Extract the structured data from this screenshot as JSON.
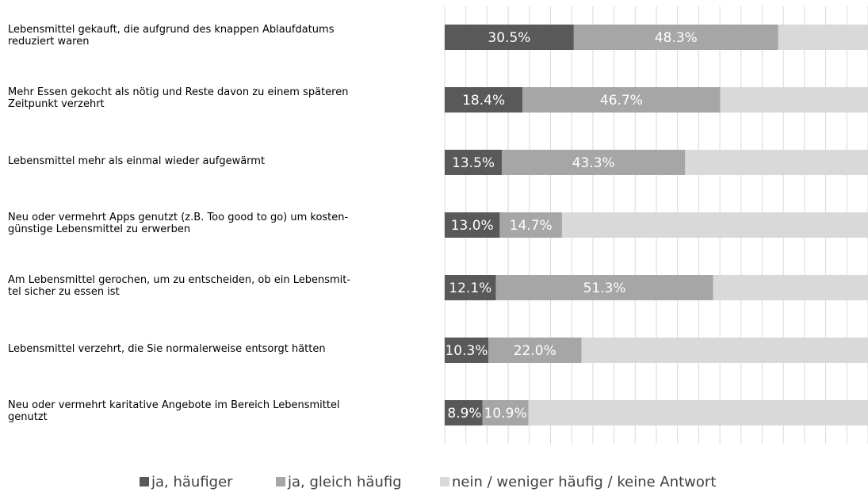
{
  "chart_data": {
    "type": "stacked-barh",
    "categories": [
      "Lebensmittel gekauft, die aufgrund des knappen Ablaufdatums\nreduziert waren",
      "Mehr Essen gekocht als nötig und Reste davon zu einem späteren\nZeitpunkt verzehrt",
      "Lebensmittel mehr als einmal wieder aufgewärmt",
      "Neu oder vermehrt Apps genutzt (z.B. Too good to go) um kosten-\ngünstige Lebensmittel zu erwerben",
      "Am Lebensmittel gerochen, um zu entscheiden, ob ein Lebensmit-\ntel sicher zu essen ist",
      "Lebensmittel verzehrt, die Sie normalerweise entsorgt hätten",
      "Neu oder vermehrt karitative Angebote im Bereich Lebensmittel\ngenutzt"
    ],
    "series": [
      {
        "name": "ja, häufiger",
        "color": "#595959",
        "values": [
          30.5,
          18.4,
          13.5,
          13.0,
          12.1,
          10.3,
          8.9
        ],
        "value_labels": [
          "30.5%",
          "18.4%",
          "13.5%",
          "13.0%",
          "12.1%",
          "10.3%",
          "8.9%"
        ]
      },
      {
        "name": "ja, gleich häufig",
        "color": "#a6a6a6",
        "values": [
          48.3,
          46.7,
          43.3,
          14.7,
          51.3,
          22.0,
          10.9
        ],
        "value_labels": [
          "48.3%",
          "46.7%",
          "43.3%",
          "14.7%",
          "51.3%",
          "22.0%",
          "10.9%"
        ]
      },
      {
        "name": "nein / weniger häufig / keine Antwort",
        "color": "#d9d9d9",
        "values": [
          21.2,
          34.9,
          43.2,
          72.3,
          36.6,
          67.7,
          80.2
        ]
      }
    ],
    "xlim": [
      0,
      100
    ],
    "xticks": [
      0,
      5,
      10,
      15,
      20,
      25,
      30,
      35,
      40,
      45,
      50,
      55,
      60,
      65,
      70,
      75,
      80,
      85,
      90,
      95,
      100
    ],
    "grid": true,
    "legend": "bottom"
  }
}
